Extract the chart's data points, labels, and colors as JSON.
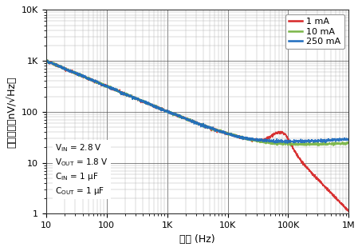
{
  "xlabel": "频率 (Hz)",
  "ylabel": "输出噪声（nV/√Hz）",
  "xlim": [
    10,
    1000000
  ],
  "ylim": [
    1,
    10000
  ],
  "legend_labels": [
    "1 mA",
    "10 mA",
    "250 mA"
  ],
  "legend_colors": [
    "#d62728",
    "#7ab648",
    "#1f6dbf"
  ],
  "annotation_lines": [
    "V$_\\mathrm{IN}$ = 2.8 V",
    "V$_\\mathrm{OUT}$ = 1.8 V",
    "C$_\\mathrm{IN}$ = 1 μF",
    "C$_\\mathrm{OUT}$ = 1 μF"
  ],
  "background_color": "#ffffff",
  "grid_major_color": "#555555",
  "grid_minor_color": "#aaaaaa",
  "xtick_labels": [
    "10",
    "100",
    "1K",
    "10K",
    "100K",
    "1M"
  ],
  "xtick_vals": [
    10,
    100,
    1000,
    10000,
    100000,
    1000000
  ],
  "ytick_labels": [
    "1",
    "10",
    "100",
    "1K",
    "10K"
  ],
  "ytick_vals": [
    1,
    10,
    100,
    1000,
    10000
  ]
}
